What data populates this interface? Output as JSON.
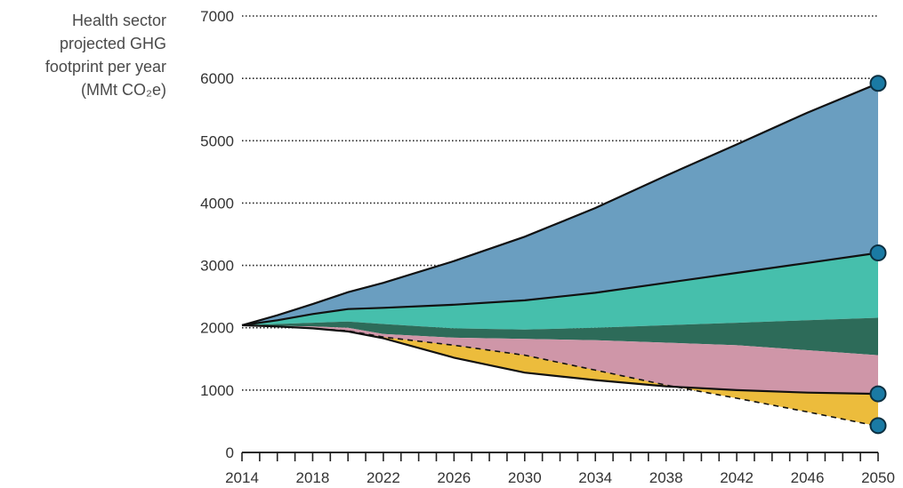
{
  "chart_data": {
    "type": "area",
    "ylabel_lines": [
      "Health sector",
      "projected GHG",
      "footprint per year",
      "(MMt CO₂e)"
    ],
    "ylim": [
      0,
      7000
    ],
    "yticks": [
      0,
      1000,
      2000,
      3000,
      4000,
      5000,
      6000,
      7000
    ],
    "xlim": [
      2014,
      2050
    ],
    "xticks": [
      2014,
      2018,
      2022,
      2026,
      2030,
      2034,
      2038,
      2042,
      2046,
      2050
    ],
    "grid": "horizontal dotted",
    "x": [
      2014,
      2016,
      2018,
      2020,
      2022,
      2026,
      2030,
      2034,
      2038,
      2042,
      2046,
      2050
    ],
    "boundaries": [
      {
        "key": "top",
        "values": [
          2040,
          2200,
          2380,
          2570,
          2720,
          3070,
          3460,
          3920,
          4440,
          4940,
          5450,
          5920
        ],
        "stroke": true
      },
      {
        "key": "upper_mid",
        "values": [
          2040,
          2120,
          2220,
          2300,
          2320,
          2370,
          2440,
          2560,
          2720,
          2880,
          3040,
          3200
        ],
        "stroke": true
      },
      {
        "key": "mid",
        "values": [
          2040,
          2060,
          2080,
          2100,
          2060,
          1990,
          1970,
          2000,
          2040,
          2080,
          2120,
          2160
        ],
        "stroke": false
      },
      {
        "key": "lower_mid",
        "values": [
          2040,
          2030,
          2020,
          2000,
          1900,
          1840,
          1820,
          1800,
          1760,
          1720,
          1640,
          1560
        ],
        "stroke": false
      },
      {
        "key": "low",
        "values": [
          2040,
          2020,
          1990,
          1940,
          1830,
          1520,
          1280,
          1160,
          1060,
          1000,
          960,
          940
        ],
        "stroke": true
      },
      {
        "key": "floor",
        "values": [
          2040,
          2020,
          1990,
          1950,
          1850,
          1720,
          1560,
          1320,
          1080,
          870,
          650,
          420
        ],
        "stroke": false,
        "dashed": true
      }
    ],
    "bands": [
      {
        "from": "top",
        "to": "upper_mid",
        "color": "#6a9ec0"
      },
      {
        "from": "upper_mid",
        "to": "mid",
        "color": "#46bfac"
      },
      {
        "from": "mid",
        "to": "lower_mid",
        "color": "#2d6b59"
      },
      {
        "from": "lower_mid",
        "to": "low",
        "color": "#cf96a8"
      },
      {
        "from": "low",
        "to": "floor",
        "color": "#ecbc3c"
      }
    ],
    "end_markers": [
      5920,
      3200,
      940,
      430
    ],
    "marker_color": "#1a7aa4"
  }
}
